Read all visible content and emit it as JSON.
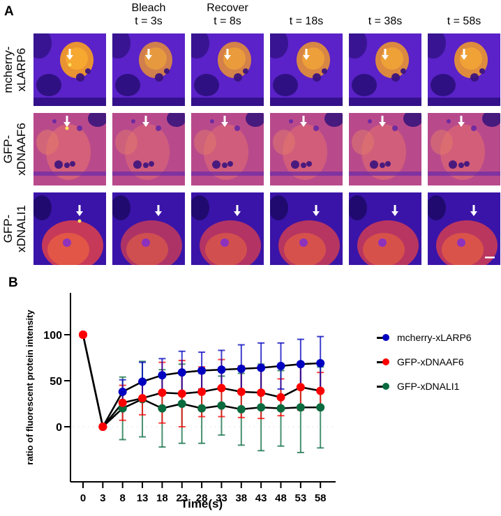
{
  "panel_a": {
    "letter": "A",
    "column_headers": [
      {
        "line1": "",
        "line2": ""
      },
      {
        "line1": "Bleach",
        "line2": "t = 3s"
      },
      {
        "line1": "Recover",
        "line2": "t = 8s"
      },
      {
        "line1": "",
        "line2": "t = 18s"
      },
      {
        "line1": "",
        "line2": "t = 38s"
      },
      {
        "line1": "",
        "line2": "t = 58s"
      }
    ],
    "rows": [
      {
        "label_line1": "mcherry-",
        "label_line2": "xLARP6"
      },
      {
        "label_line1": "GFP-",
        "label_line2": "xDNAAF6"
      },
      {
        "label_line1": "GFP-",
        "label_line2": "xDNALI1"
      }
    ],
    "scale_bar": "scale bar"
  },
  "panel_b": {
    "letter": "B"
  },
  "chart_data": {
    "type": "line",
    "title": "",
    "xlabel": "Time(s)",
    "ylabel": "ratio of fluorescent protein intensity",
    "x": [
      0,
      3,
      8,
      13,
      18,
      23,
      28,
      33,
      38,
      43,
      48,
      53,
      58
    ],
    "x_tick_labels": [
      "0",
      "3",
      "8",
      "13",
      "18",
      "23",
      "28",
      "33",
      "38",
      "43",
      "48",
      "53",
      "58"
    ],
    "y_ticks": [
      0,
      50,
      100
    ],
    "ylim": [
      -40,
      130
    ],
    "zero_line": "dotted",
    "legend_position": "right",
    "series": [
      {
        "name": "mcherry-xLARP6",
        "color": "#0000c0",
        "values": [
          100,
          0,
          38,
          49,
          56,
          59,
          61,
          62,
          63,
          64,
          66,
          68,
          69
        ],
        "error": [
          null,
          null,
          13,
          21,
          18,
          23,
          20,
          21,
          26,
          27,
          25,
          27,
          29
        ]
      },
      {
        "name": "GFP-xDNAAF6",
        "color": "#ff0000",
        "values": [
          100,
          0,
          26,
          31,
          37,
          36,
          38,
          42,
          38,
          37,
          32,
          43,
          39
        ],
        "error": [
          null,
          null,
          19,
          18,
          33,
          36,
          27,
          31,
          28,
          28,
          20,
          25,
          20
        ]
      },
      {
        "name": "GFP-xDNALI1",
        "color": "#0a6b3f",
        "values": [
          100,
          0,
          20,
          30,
          20,
          25,
          20,
          23,
          19,
          21,
          20,
          21,
          21
        ],
        "error": [
          null,
          null,
          34,
          41,
          42,
          43,
          38,
          32,
          39,
          47,
          41,
          49,
          44
        ]
      }
    ]
  }
}
